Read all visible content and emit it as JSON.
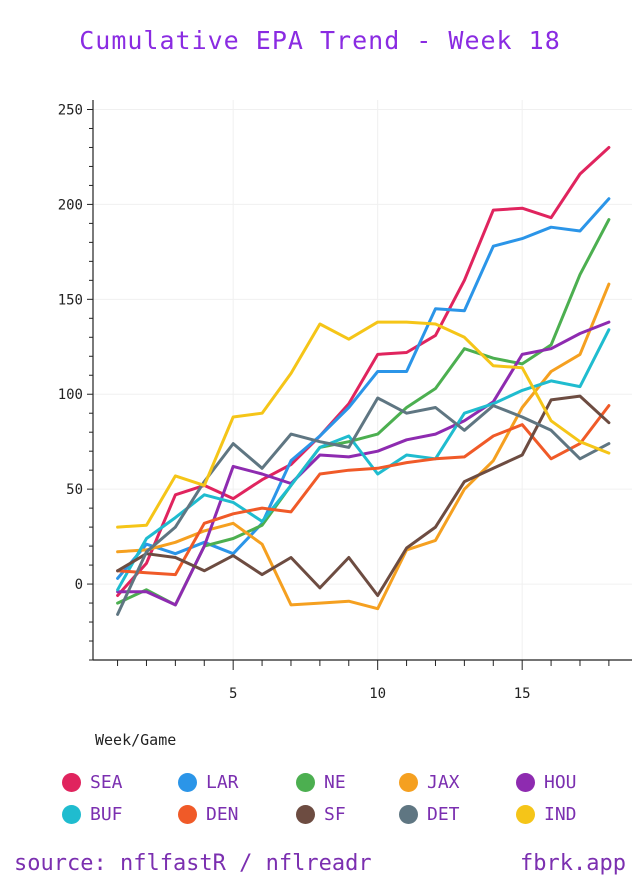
{
  "chart_data": {
    "type": "line",
    "title": "Cumulative EPA Trend - Week 18",
    "xlabel": "Week/Game",
    "ylabel": "",
    "xlim": [
      0.15,
      18.8
    ],
    "ylim": [
      -40,
      255
    ],
    "x_ticks": [
      5,
      10,
      15
    ],
    "y_ticks": [
      0,
      50,
      100,
      150,
      200,
      250
    ],
    "grid": true,
    "legend": "bottom",
    "x": [
      1,
      2,
      3,
      4,
      5,
      6,
      7,
      8,
      9,
      10,
      11,
      12,
      13,
      14,
      15,
      16,
      17,
      18
    ],
    "series": [
      {
        "name": "SEA",
        "color": "#e0245e",
        "values": [
          -6,
          11,
          47,
          52,
          45,
          55,
          63,
          78,
          95,
          121,
          122,
          131,
          160,
          197,
          198,
          193,
          216,
          230
        ]
      },
      {
        "name": "LAR",
        "color": "#2b95e8",
        "values": [
          3,
          21,
          16,
          22,
          16,
          32,
          65,
          78,
          93,
          112,
          112,
          145,
          144,
          178,
          182,
          188,
          186,
          203
        ]
      },
      {
        "name": "NE",
        "color": "#4caf50",
        "values": [
          -10,
          -3,
          -11,
          20,
          24,
          31,
          52,
          72,
          75,
          79,
          93,
          103,
          124,
          119,
          116,
          126,
          163,
          192
        ]
      },
      {
        "name": "JAX",
        "color": "#f5a020",
        "values": [
          17,
          18,
          22,
          28,
          32,
          21,
          -11,
          -10,
          -9,
          -13,
          18,
          23,
          50,
          65,
          93,
          112,
          121,
          158
        ]
      },
      {
        "name": "HOU",
        "color": "#8e2bb0",
        "values": [
          -4,
          -4,
          -11,
          20,
          62,
          58,
          53,
          68,
          67,
          70,
          76,
          79,
          86,
          96,
          121,
          124,
          132,
          138
        ]
      },
      {
        "name": "BUF",
        "color": "#1fbccf",
        "values": [
          -3,
          24,
          35,
          47,
          43,
          33,
          52,
          72,
          78,
          58,
          68,
          66,
          90,
          95,
          102,
          107,
          104,
          134
        ]
      },
      {
        "name": "DEN",
        "color": "#f05a28",
        "values": [
          7,
          6,
          5,
          32,
          37,
          40,
          38,
          58,
          60,
          61,
          64,
          66,
          67,
          78,
          84,
          66,
          74,
          94
        ]
      },
      {
        "name": "SF",
        "color": "#6d4c41",
        "values": [
          7,
          16,
          14,
          7,
          15,
          5,
          14,
          -2,
          14,
          -6,
          19,
          30,
          54,
          61,
          68,
          97,
          99,
          85
        ]
      },
      {
        "name": "DET",
        "color": "#5f7682",
        "values": [
          -16,
          17,
          30,
          54,
          74,
          61,
          79,
          75,
          72,
          98,
          90,
          93,
          81,
          94,
          88,
          81,
          66,
          74
        ]
      },
      {
        "name": "IND",
        "color": "#f5c518",
        "values": [
          30,
          31,
          57,
          52,
          88,
          90,
          111,
          137,
          129,
          138,
          138,
          137,
          130,
          115,
          114,
          86,
          75,
          69
        ]
      }
    ]
  },
  "footer": {
    "source": "source: nflfastR / nflreadr",
    "site": "fbrk.app"
  },
  "colors": {
    "title": "#8a2be2",
    "text": "#7b2fb0"
  }
}
